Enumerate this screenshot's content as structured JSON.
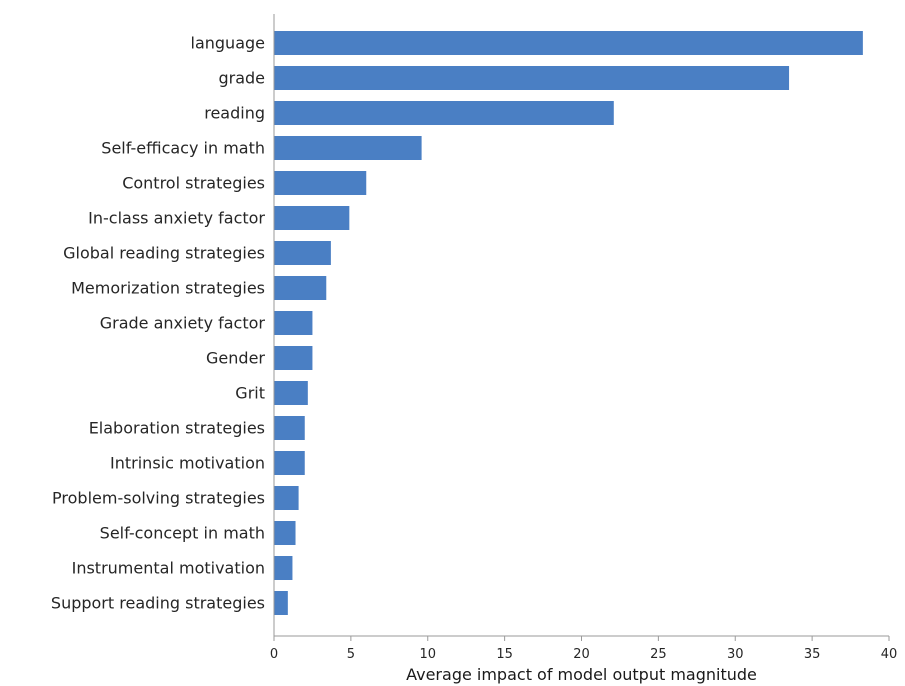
{
  "chart_data": {
    "type": "bar",
    "orientation": "horizontal",
    "categories": [
      "language",
      "grade",
      "reading",
      "Self-efficacy in math",
      "Control strategies",
      "In-class anxiety factor",
      "Global reading strategies",
      "Memorization strategies",
      "Grade anxiety factor",
      "Gender",
      "Grit",
      "Elaboration strategies",
      "Intrinsic motivation",
      "Problem-solving strategies",
      "Self-concept in math",
      "Instrumental motivation",
      "Support reading strategies"
    ],
    "values": [
      38.3,
      33.5,
      22.1,
      9.6,
      6.0,
      4.9,
      3.7,
      3.4,
      2.5,
      2.5,
      2.2,
      2.0,
      2.0,
      1.6,
      1.4,
      1.2,
      0.9
    ],
    "xlabel": "Average impact of model output magnitude",
    "ylabel": "",
    "xlim": [
      0,
      40
    ],
    "xticks": [
      0,
      5,
      10,
      15,
      20,
      25,
      30,
      35,
      40
    ],
    "bar_color": "#4a7fc4",
    "grid": false,
    "legend": "none"
  }
}
